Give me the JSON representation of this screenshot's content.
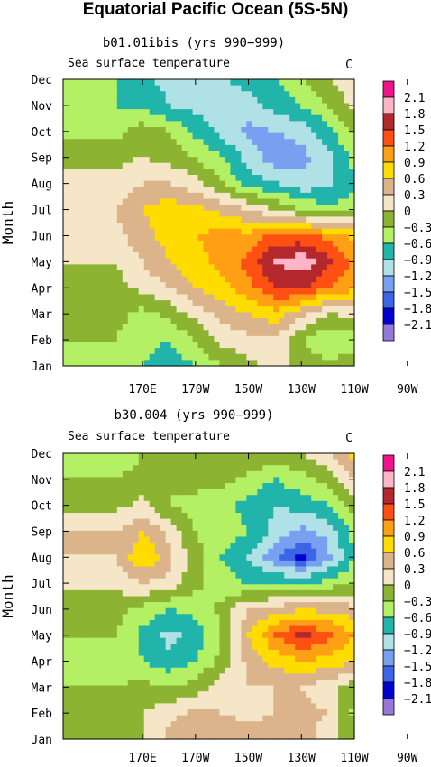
{
  "figure_title": "Equatorial Pacific Ocean (5S-5N)",
  "colorbar_labels": [
    "2.1",
    "1.8",
    "1.5",
    "1.2",
    "0.9",
    "0.6",
    "0.3",
    "0",
    "−0.3",
    "−0.6",
    "−0.9",
    "−1.2",
    "−1.5",
    "−1.8",
    "−2.1"
  ],
  "level_colors": [
    "#f0148c",
    "#ffb4c8",
    "#b4282d",
    "#ff5014",
    "#ffa014",
    "#ffdc00",
    "#dcb48c",
    "#f5e6c8",
    "#8cb432",
    "#b4f064",
    "#20b4aa",
    "#afe1e6",
    "#78a0f0",
    "#3c64e6",
    "#0000d2",
    "#9678dc"
  ],
  "chart_data": [
    {
      "type": "heatmap",
      "title": "b01.01ibis (yrs 990−999)",
      "subtitle": "Sea surface temperature",
      "units": "C",
      "ylabel": "Month",
      "xlabel": "",
      "x_ticks": [
        "170E",
        "170W",
        "150W",
        "130W",
        "110W",
        "90W"
      ],
      "y_ticks": [
        "Jan",
        "Feb",
        "Mar",
        "Apr",
        "May",
        "Jun",
        "Jul",
        "Aug",
        "Sep",
        "Oct",
        "Nov",
        "Dec"
      ],
      "x_lon": [
        180,
        190,
        200,
        210,
        220,
        230,
        240,
        250,
        260,
        270
      ],
      "values": [
        [
          -0.4,
          -0.6,
          -0.8,
          -0.6,
          -0.3,
          -0.1,
          0.1,
          -0.1,
          -0.2,
          -0.1
        ],
        [
          -0.3,
          -0.5,
          -0.6,
          -0.3,
          0.1,
          0.2,
          0.3,
          -0.3,
          -0.6,
          -0.5
        ],
        [
          -0.2,
          -0.4,
          -0.2,
          0.1,
          0.4,
          0.6,
          0.8,
          0.4,
          0.0,
          0.1
        ],
        [
          -0.1,
          0.1,
          0.3,
          0.6,
          0.8,
          1.1,
          1.5,
          1.6,
          1.2,
          1.0
        ],
        [
          0.0,
          0.3,
          0.6,
          0.8,
          1.0,
          1.3,
          1.8,
          2.0,
          1.6,
          1.1
        ],
        [
          0.2,
          0.5,
          0.7,
          0.9,
          1.0,
          1.0,
          1.3,
          1.3,
          1.1,
          0.8
        ],
        [
          0.3,
          0.6,
          0.8,
          0.7,
          0.5,
          0.3,
          0.0,
          -0.3,
          -0.5,
          -0.5
        ],
        [
          0.1,
          0.3,
          0.3,
          0.1,
          -0.3,
          -0.7,
          -0.9,
          -1.1,
          -1.0,
          -0.6
        ],
        [
          -0.1,
          0.0,
          -0.1,
          -0.3,
          -0.6,
          -1.0,
          -1.4,
          -1.3,
          -1.0,
          -0.5
        ],
        [
          -0.4,
          -0.1,
          -0.3,
          -0.7,
          -1.0,
          -1.3,
          -1.2,
          -1.1,
          -0.7,
          -0.2
        ],
        [
          -0.6,
          -0.7,
          -0.9,
          -1.0,
          -1.1,
          -1.0,
          -0.8,
          -0.6,
          -0.3,
          0.1
        ],
        [
          -0.6,
          -0.8,
          -1.0,
          -1.0,
          -0.9,
          -0.8,
          -0.6,
          -0.3,
          0.0,
          0.2
        ]
      ]
    },
    {
      "type": "heatmap",
      "title": "b30.004 (yrs 990−999)",
      "subtitle": "Sea surface temperature",
      "units": "C",
      "ylabel": "Month",
      "xlabel": "",
      "x_ticks": [
        "170E",
        "170W",
        "150W",
        "130W",
        "110W",
        "90W"
      ],
      "y_ticks": [
        "Jan",
        "Feb",
        "Mar",
        "Apr",
        "May",
        "Jun",
        "Jul",
        "Aug",
        "Sep",
        "Oct",
        "Nov",
        "Dec"
      ],
      "x_lon": [
        180,
        190,
        200,
        210,
        220,
        230,
        240,
        250,
        260,
        270
      ],
      "values": [
        [
          -0.3,
          0.0,
          0.4,
          0.6,
          0.6,
          0.5,
          0.5,
          0.5,
          0.1,
          -0.2
        ],
        [
          -0.2,
          0.0,
          0.2,
          0.4,
          0.3,
          0.2,
          0.3,
          0.4,
          0.3,
          -0.4
        ],
        [
          -0.3,
          -0.2,
          -0.3,
          -0.2,
          0.2,
          0.3,
          0.3,
          0.3,
          0.1,
          -0.2
        ],
        [
          -0.4,
          -0.6,
          -0.8,
          -0.6,
          -0.2,
          0.4,
          0.7,
          0.9,
          0.8,
          0.6
        ],
        [
          -0.3,
          -0.7,
          -1.0,
          -0.8,
          -0.3,
          0.6,
          1.2,
          1.6,
          1.3,
          0.9
        ],
        [
          -0.2,
          -0.4,
          -0.6,
          -0.5,
          -0.2,
          0.3,
          0.4,
          0.6,
          0.5,
          0.4
        ],
        [
          0.1,
          0.3,
          0.2,
          -0.2,
          -0.5,
          -0.6,
          -0.6,
          -0.6,
          -0.5,
          -0.3
        ],
        [
          0.3,
          0.9,
          0.4,
          -0.2,
          -0.6,
          -0.9,
          -1.4,
          -1.9,
          -1.3,
          -0.6
        ],
        [
          0.3,
          0.6,
          0.2,
          -0.3,
          -0.4,
          -0.6,
          -1.0,
          -1.3,
          -1.1,
          -0.5
        ],
        [
          -0.1,
          0.1,
          -0.3,
          -0.4,
          -0.5,
          -0.7,
          -0.9,
          -0.8,
          -0.6,
          -0.2
        ],
        [
          -0.3,
          -0.2,
          -0.3,
          -0.2,
          -0.2,
          -0.4,
          -0.6,
          -0.4,
          -0.2,
          0.3
        ],
        [
          -0.5,
          -0.3,
          -0.3,
          -0.1,
          0.0,
          0.0,
          -0.1,
          0.0,
          0.3,
          0.8
        ]
      ]
    }
  ]
}
